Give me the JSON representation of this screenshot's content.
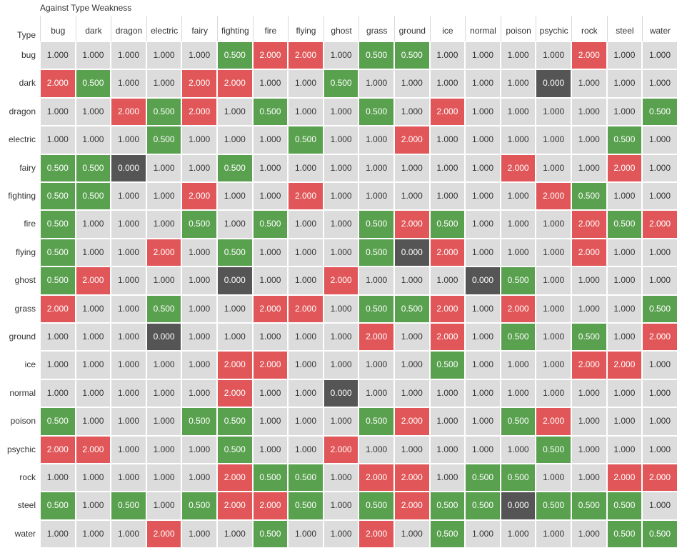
{
  "title": "Against Type Weakness",
  "row_axis_title": "Type",
  "colors": {
    "neutral": "#dcdcdc",
    "weak": "#e15759",
    "resist": "#59a14f",
    "immune": "#555555"
  },
  "chart_data": {
    "type": "heatmap",
    "title": "Against Type Weakness",
    "ylabel": "Type",
    "columns": [
      "bug",
      "dark",
      "dragon",
      "electric",
      "fairy",
      "fighting",
      "fire",
      "flying",
      "ghost",
      "grass",
      "ground",
      "ice",
      "normal",
      "poison",
      "psychic",
      "rock",
      "steel",
      "water"
    ],
    "rows": [
      "bug",
      "dark",
      "dragon",
      "electric",
      "fairy",
      "fighting",
      "fire",
      "flying",
      "ghost",
      "grass",
      "ground",
      "ice",
      "normal",
      "poison",
      "psychic",
      "rock",
      "steel",
      "water"
    ],
    "values": [
      [
        1,
        1,
        1,
        1,
        1,
        0.5,
        2,
        2,
        1,
        0.5,
        0.5,
        1,
        1,
        1,
        1,
        2,
        1,
        1
      ],
      [
        2,
        0.5,
        1,
        1,
        2,
        2,
        1,
        1,
        0.5,
        1,
        1,
        1,
        1,
        1,
        0,
        1,
        1,
        1
      ],
      [
        1,
        1,
        2,
        0.5,
        2,
        1,
        0.5,
        1,
        1,
        0.5,
        1,
        2,
        1,
        1,
        1,
        1,
        1,
        0.5
      ],
      [
        1,
        1,
        1,
        0.5,
        1,
        1,
        1,
        0.5,
        1,
        1,
        2,
        1,
        1,
        1,
        1,
        1,
        0.5,
        1
      ],
      [
        0.5,
        0.5,
        0,
        1,
        1,
        0.5,
        1,
        1,
        1,
        1,
        1,
        1,
        1,
        2,
        1,
        1,
        2,
        1
      ],
      [
        0.5,
        0.5,
        1,
        1,
        2,
        1,
        1,
        2,
        1,
        1,
        1,
        1,
        1,
        1,
        2,
        0.5,
        1,
        1
      ],
      [
        0.5,
        1,
        1,
        1,
        0.5,
        1,
        0.5,
        1,
        1,
        0.5,
        2,
        0.5,
        1,
        1,
        1,
        2,
        0.5,
        2
      ],
      [
        0.5,
        1,
        1,
        2,
        1,
        0.5,
        1,
        1,
        1,
        0.5,
        0,
        2,
        1,
        1,
        1,
        2,
        1,
        1
      ],
      [
        0.5,
        2,
        1,
        1,
        1,
        0,
        1,
        1,
        2,
        1,
        1,
        1,
        0,
        0.5,
        1,
        1,
        1,
        1
      ],
      [
        2,
        1,
        1,
        0.5,
        1,
        1,
        2,
        2,
        1,
        0.5,
        0.5,
        2,
        1,
        2,
        1,
        1,
        1,
        0.5
      ],
      [
        1,
        1,
        1,
        0,
        1,
        1,
        1,
        1,
        1,
        2,
        1,
        2,
        1,
        0.5,
        1,
        0.5,
        1,
        2
      ],
      [
        1,
        1,
        1,
        1,
        1,
        2,
        2,
        1,
        1,
        1,
        1,
        0.5,
        1,
        1,
        1,
        2,
        2,
        1
      ],
      [
        1,
        1,
        1,
        1,
        1,
        2,
        1,
        1,
        0,
        1,
        1,
        1,
        1,
        1,
        1,
        1,
        1,
        1
      ],
      [
        0.5,
        1,
        1,
        1,
        0.5,
        0.5,
        1,
        1,
        1,
        0.5,
        2,
        1,
        1,
        0.5,
        2,
        1,
        1,
        1
      ],
      [
        2,
        2,
        1,
        1,
        1,
        0.5,
        1,
        1,
        2,
        1,
        1,
        1,
        1,
        1,
        0.5,
        1,
        1,
        1
      ],
      [
        1,
        1,
        1,
        1,
        1,
        2,
        0.5,
        0.5,
        1,
        2,
        2,
        1,
        0.5,
        0.5,
        1,
        1,
        2,
        2
      ],
      [
        0.5,
        1,
        0.5,
        1,
        0.5,
        2,
        2,
        0.5,
        1,
        0.5,
        2,
        0.5,
        0.5,
        0,
        0.5,
        0.5,
        0.5,
        1
      ],
      [
        1,
        1,
        1,
        2,
        1,
        1,
        0.5,
        1,
        1,
        2,
        1,
        0.5,
        1,
        1,
        1,
        1,
        0.5,
        0.5
      ]
    ],
    "value_format": "3 decimals"
  }
}
